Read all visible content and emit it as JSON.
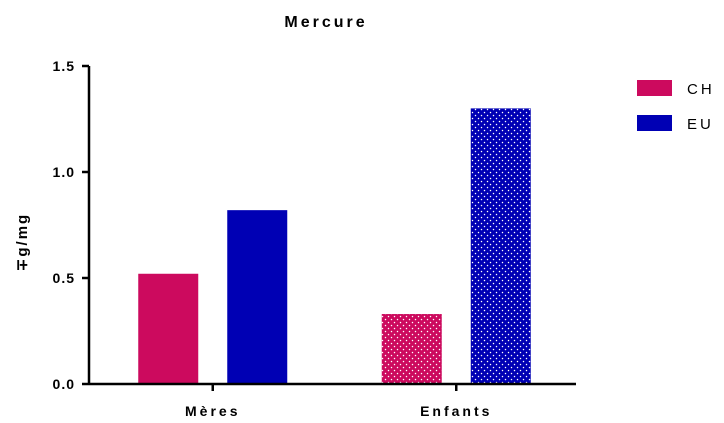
{
  "chart_data": {
    "type": "bar",
    "title": "Mercure",
    "ylabel": "∓g/mg",
    "xlabel": "",
    "categories": [
      "Mères",
      "Enfants"
    ],
    "ylim": [
      0,
      1.5
    ],
    "yticks": [
      "0.0",
      "0.5",
      "1.0",
      "1.5"
    ],
    "grid": false,
    "legend_position": "top-right",
    "series": [
      {
        "name": "CH",
        "values": [
          0.52,
          0.33
        ],
        "color": "#cc0a5e",
        "patterned": [
          false,
          true
        ]
      },
      {
        "name": "EU",
        "values": [
          0.82,
          1.3
        ],
        "color": "#0000b4",
        "patterned": [
          false,
          true
        ]
      }
    ]
  }
}
